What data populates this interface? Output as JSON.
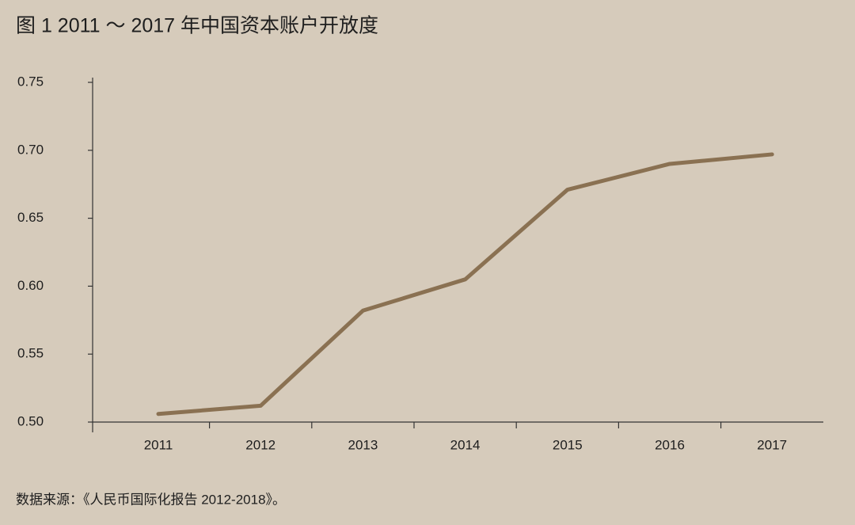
{
  "chart_data": {
    "type": "line",
    "title": "图 1  2011 ～ 2017 年中国资本账户开放度",
    "source": "数据来源：《人民币国际化报告 2012-2018》。",
    "categories": [
      "2011",
      "2012",
      "2013",
      "2014",
      "2015",
      "2016",
      "2017"
    ],
    "values": [
      0.506,
      0.512,
      0.582,
      0.605,
      0.671,
      0.69,
      0.697
    ],
    "color": "#8a7152",
    "ylim": [
      0.5,
      0.75
    ],
    "yticks": [
      {
        "value": 0.5,
        "label": "0.50"
      },
      0.55,
      {
        "value": 0.6,
        "label": "0.60"
      },
      0.65,
      {
        "value": 0.7,
        "label": "0.70"
      },
      0.75
    ],
    "grid": false
  }
}
